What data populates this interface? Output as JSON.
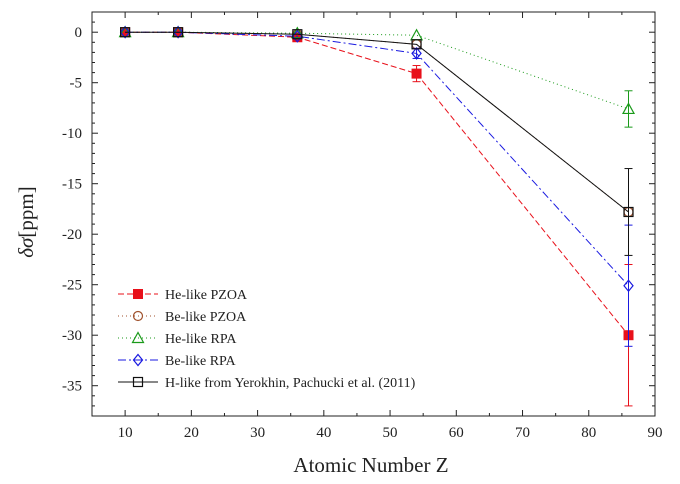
{
  "chart_data": {
    "type": "line",
    "title": "",
    "xlabel": "Atomic Number Z",
    "ylabel_symbol": "δσ",
    "ylabel_unit": "[ppm]",
    "xlim": [
      5,
      90
    ],
    "ylim": [
      -38,
      2
    ],
    "xticks": [
      10,
      20,
      30,
      40,
      50,
      60,
      70,
      80,
      90
    ],
    "yticks": [
      0,
      -5,
      -10,
      -15,
      -20,
      -25,
      -30,
      -35
    ],
    "grid": false,
    "legend_position": "bottom-left",
    "series": [
      {
        "name": "He-like PZOA",
        "color": "#e8101a",
        "marker": "filled-square",
        "dash": "6,3",
        "x": [
          10,
          18,
          36,
          54,
          86
        ],
        "y": [
          0,
          0,
          -0.5,
          -4.1,
          -30.0
        ],
        "err": [
          0,
          0,
          0,
          0.8,
          7.0
        ]
      },
      {
        "name": "Be-like PZOA",
        "color": "#a0522d",
        "marker": "open-circle",
        "dash": "1,3",
        "x": [
          10,
          18,
          36,
          54,
          86
        ],
        "y": [
          0,
          0,
          -0.2,
          -1.2,
          -17.8
        ],
        "err": [
          0,
          0,
          0,
          0,
          0
        ]
      },
      {
        "name": "He-like RPA",
        "color": "#1a9a1a",
        "marker": "open-triangle",
        "dash": "1,3",
        "x": [
          10,
          18,
          36,
          54,
          86
        ],
        "y": [
          0,
          0,
          -0.1,
          -0.3,
          -7.6
        ],
        "err": [
          0,
          0,
          0,
          0,
          1.8
        ]
      },
      {
        "name": "Be-like RPA",
        "color": "#1a1ae0",
        "marker": "open-diamond",
        "dash": "8,3,2,3",
        "x": [
          10,
          18,
          36,
          54,
          86
        ],
        "y": [
          0,
          0,
          -0.4,
          -2.1,
          -25.1
        ],
        "err": [
          0,
          0,
          0,
          0.5,
          6.0
        ]
      },
      {
        "name": "H-like from Yerokhin, Pachucki et al. (2011)",
        "color": "#111111",
        "marker": "open-square",
        "dash": "",
        "x": [
          10,
          18,
          36,
          54,
          86
        ],
        "y": [
          0,
          0,
          -0.2,
          -1.2,
          -17.8
        ],
        "err": [
          0,
          0,
          0,
          0,
          4.3
        ]
      }
    ]
  }
}
